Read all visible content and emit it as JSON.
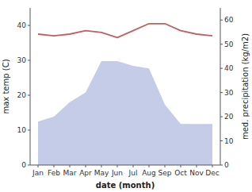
{
  "chart_data": {
    "type": "line",
    "xlabel": "date (month)",
    "ylabel": "max temp (C)",
    "y2label": "med. precipitation (kg/m2)",
    "categories": [
      "Jan",
      "Feb",
      "Mar",
      "Apr",
      "May",
      "Jun",
      "Jul",
      "Aug",
      "Sep",
      "Oct",
      "Nov",
      "Dec"
    ],
    "series": [
      {
        "type": "line",
        "color": "#c06060",
        "values": [
          37.5,
          37.0,
          37.5,
          38.5,
          38.0,
          36.5,
          38.5,
          40.5,
          40.5,
          38.5,
          37.5,
          37.0
        ]
      },
      {
        "type": "area",
        "color": "#c5cce8",
        "axis": "y2",
        "values": [
          18,
          20,
          26,
          30,
          43,
          43,
          41,
          40,
          25,
          17,
          17,
          17
        ]
      }
    ],
    "ylim": [
      0,
      45
    ],
    "yticks": [
      0,
      10,
      20,
      30,
      40
    ],
    "y2lim": [
      0,
      65
    ],
    "y2ticks": [
      0,
      10,
      20,
      30,
      40,
      50,
      60
    ],
    "grid": false
  }
}
